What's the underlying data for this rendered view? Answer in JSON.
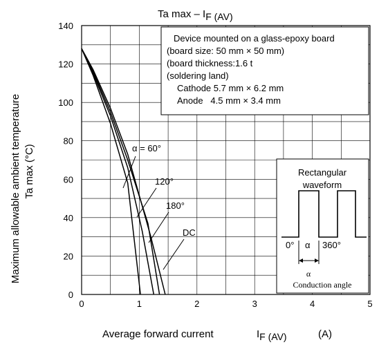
{
  "chart_data": {
    "type": "line",
    "title": "Ta max – I",
    "title_sub": "F (AV)",
    "xlabel": "Average forward current",
    "xlabel_symbol": "I",
    "xlabel_symbol_sub": "F (AV)",
    "xlabel_unit": "(A)",
    "ylabel_line1": "Maximum allowable ambient temperature",
    "ylabel_line2": "Ta max    (°C)",
    "xlim": [
      0,
      5
    ],
    "ylim": [
      0,
      140
    ],
    "x_ticks": [
      "0",
      "1",
      "2",
      "3",
      "4",
      "5"
    ],
    "y_ticks": [
      "0",
      "20",
      "40",
      "60",
      "80",
      "100",
      "120",
      "140"
    ],
    "grid": true,
    "series": [
      {
        "name": "α = 60°",
        "points": [
          [
            0,
            128
          ],
          [
            0.2,
            114
          ],
          [
            0.5,
            89
          ],
          [
            0.8,
            58
          ],
          [
            1.02,
            0
          ]
        ]
      },
      {
        "name": "120°",
        "points": [
          [
            0,
            128
          ],
          [
            0.2,
            115
          ],
          [
            0.5,
            93
          ],
          [
            0.8,
            66
          ],
          [
            1.05,
            33
          ],
          [
            1.25,
            0
          ]
        ]
      },
      {
        "name": "180°",
        "points": [
          [
            0,
            128
          ],
          [
            0.2,
            116
          ],
          [
            0.5,
            95
          ],
          [
            0.8,
            70
          ],
          [
            1.15,
            37
          ],
          [
            1.35,
            0
          ]
        ]
      },
      {
        "name": "DC",
        "points": [
          [
            0,
            128
          ],
          [
            0.2,
            117
          ],
          [
            0.5,
            97
          ],
          [
            0.8,
            73
          ],
          [
            1.2,
            30
          ],
          [
            1.45,
            0
          ]
        ]
      }
    ],
    "annotations": {
      "box_lines": [
        "Device mounted on a glass-epoxy board",
        "(board size: 50 mm × 50 mm)",
        "(board thickness:1.6 t",
        "(soldering land)",
        "Cathode 5.7 mm × 6.2 mm",
        "Anode   4.5 mm × 3.4 mm"
      ],
      "inset_title_1": "Rectangular",
      "inset_title_2": "waveform",
      "inset_zero": "0°",
      "inset_alpha": "α",
      "inset_360": "360°",
      "inset_alpha_below": "α",
      "inset_caption": "Conduction angle"
    }
  }
}
